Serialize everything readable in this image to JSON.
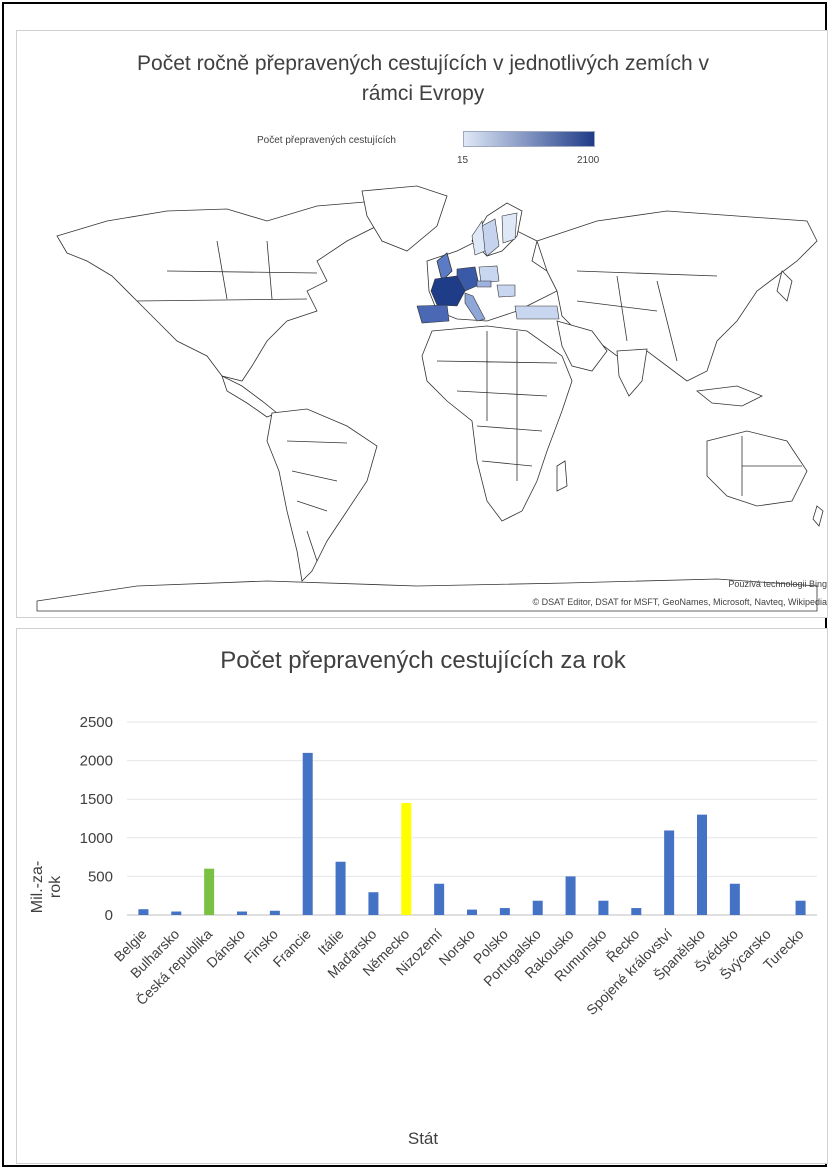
{
  "map": {
    "title_line1": "Počet ročně přepravených cestujících v jednotlivých zemích v",
    "title_line2": "rámci Evropy",
    "legend_label": "Počet přepravených cestujících",
    "legend_min": "15",
    "legend_max": "2100",
    "credit_line1": "Používá technologii Bing",
    "credit_line2": "© DSAT Editor, DSAT for MSFT, GeoNames, Microsoft, Navteq, Wikipedia",
    "colors": {
      "low": "#dfe8f7",
      "high": "#1f3c88",
      "border": "#333333"
    }
  },
  "chart_data": {
    "type": "bar",
    "title": "Počet přepravených cestujících za rok",
    "xlabel": "Stát",
    "ylabel": "Mil.-za-rok",
    "ylim": [
      0,
      2500
    ],
    "yticks": [
      0,
      500,
      1000,
      1500,
      2000,
      2500
    ],
    "grid": "horizontal",
    "categories": [
      "Belgie",
      "Bulharsko",
      "Česká republika",
      "Dánsko",
      "Finsko",
      "Francie",
      "Itálie",
      "Maďarsko",
      "Německo",
      "Nizozemí",
      "Norsko",
      "Polsko",
      "Portugalsko",
      "Rakousko",
      "Rumunsko",
      "Řecko",
      "Spojené království",
      "Španělsko",
      "Švédsko",
      "Švýcarsko",
      "Turecko"
    ],
    "values": [
      75,
      45,
      600,
      45,
      55,
      2100,
      690,
      295,
      1450,
      405,
      70,
      90,
      185,
      500,
      185,
      90,
      1095,
      1300,
      405,
      0,
      185
    ],
    "colors": [
      "#4472c4",
      "#4472c4",
      "#7ac143",
      "#4472c4",
      "#4472c4",
      "#4472c4",
      "#4472c4",
      "#4472c4",
      "#ffff00",
      "#4472c4",
      "#4472c4",
      "#4472c4",
      "#4472c4",
      "#4472c4",
      "#4472c4",
      "#4472c4",
      "#4472c4",
      "#4472c4",
      "#4472c4",
      "#4472c4",
      "#4472c4"
    ]
  }
}
